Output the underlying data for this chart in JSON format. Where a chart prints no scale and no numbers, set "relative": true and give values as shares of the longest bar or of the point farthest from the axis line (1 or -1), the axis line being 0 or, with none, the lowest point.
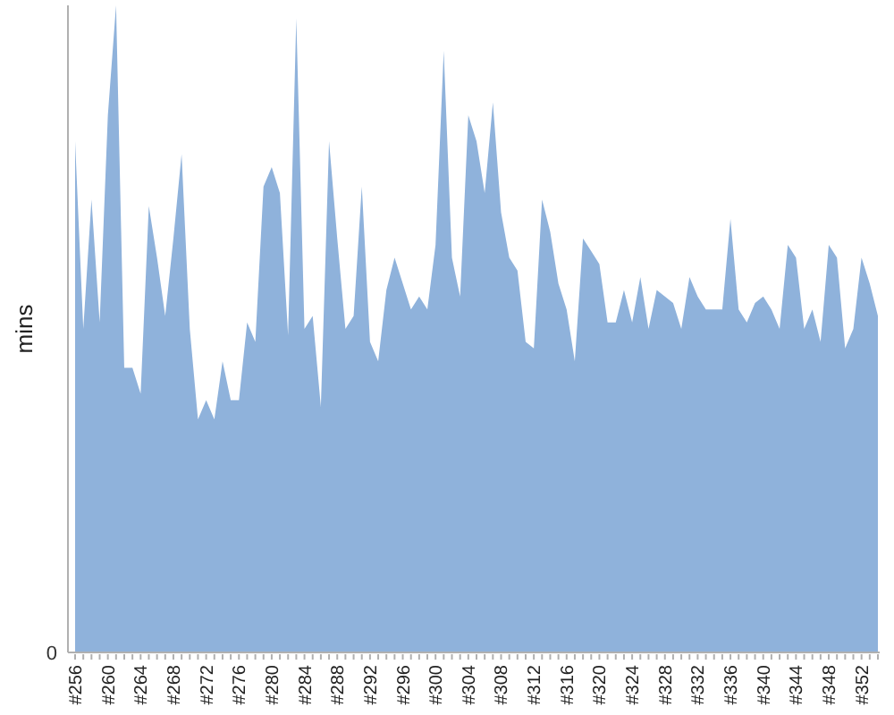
{
  "chart_data": {
    "type": "area",
    "ylabel": "mins",
    "relative": true,
    "color": "#8fb2db",
    "annotations": [
      "0"
    ],
    "categories": [
      "#256",
      null,
      null,
      null,
      "#260",
      null,
      null,
      null,
      "#264",
      null,
      null,
      null,
      "#268",
      null,
      null,
      null,
      "#272",
      null,
      null,
      null,
      "#276",
      null,
      null,
      null,
      "#280",
      null,
      null,
      null,
      "#284",
      null,
      null,
      null,
      "#288",
      null,
      null,
      null,
      "#292",
      null,
      null,
      null,
      "#296",
      null,
      null,
      null,
      "#300",
      null,
      null,
      null,
      "#304",
      null,
      null,
      null,
      "#308",
      null,
      null,
      null,
      "#312",
      null,
      null,
      null,
      "#316",
      null,
      null,
      null,
      "#320",
      null,
      null,
      null,
      "#324",
      null,
      null,
      null,
      "#328",
      null,
      null,
      null,
      "#332",
      null,
      null,
      null,
      "#336",
      null,
      null,
      null,
      "#340",
      null,
      null,
      null,
      "#344",
      null,
      null,
      null,
      "#348",
      null,
      null,
      null,
      "#352",
      null,
      null
    ],
    "values": [
      0.79,
      0.5,
      0.7,
      0.51,
      0.83,
      1,
      0.44,
      0.44,
      0.4,
      0.69,
      0.61,
      0.52,
      0.64,
      0.77,
      0.5,
      0.36,
      0.39,
      0.36,
      0.45,
      0.39,
      0.39,
      0.51,
      0.48,
      0.72,
      0.75,
      0.71,
      0.49,
      0.98,
      0.5,
      0.52,
      0.38,
      0.79,
      0.64,
      0.5,
      0.52,
      0.72,
      0.48,
      0.45,
      0.56,
      0.61,
      0.57,
      0.53,
      0.55,
      0.53,
      0.63,
      0.93,
      0.61,
      0.55,
      0.83,
      0.79,
      0.71,
      0.85,
      0.68,
      0.61,
      0.59,
      0.48,
      0.47,
      0.7,
      0.65,
      0.57,
      0.53,
      0.45,
      0.64,
      0.62,
      0.6,
      0.51,
      0.51,
      0.56,
      0.51,
      0.58,
      0.5,
      0.56,
      0.55,
      0.54,
      0.5,
      0.58,
      0.55,
      0.53,
      0.53,
      0.53,
      0.67,
      0.53,
      0.51,
      0.54,
      0.55,
      0.53,
      0.5,
      0.63,
      0.61,
      0.5,
      0.53,
      0.48,
      0.63,
      0.61,
      0.47,
      0.5,
      0.61,
      0.57,
      0.52
    ]
  }
}
